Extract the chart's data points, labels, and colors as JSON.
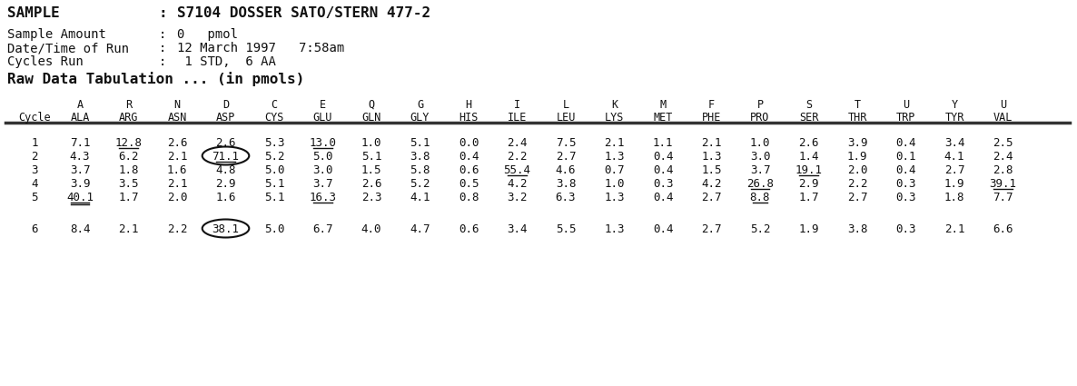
{
  "title_sample": "SAMPLE",
  "title_colon": ":",
  "title_value": "S7104 DOSSER SATO/STERN 477-2",
  "meta": [
    [
      "Sample Amount",
      ":",
      "0   pmol"
    ],
    [
      "Date/Time of Run",
      ":",
      "12 March 1997   7:58am"
    ],
    [
      "Cycles Run",
      ":",
      " 1 STD,  6 AA"
    ]
  ],
  "section_header": "Raw Data Tabulation ... (in pmols)",
  "col_letters": [
    "A",
    "R",
    "N",
    "D",
    "C",
    "E",
    "Q",
    "G",
    "H",
    "I",
    "L",
    "K",
    "M",
    "F",
    "P",
    "S",
    "T",
    "U",
    "Y",
    "U"
  ],
  "col_names": [
    "ALA",
    "ARG",
    "ASN",
    "ASP",
    "CYS",
    "GLU",
    "GLN",
    "GLY",
    "HIS",
    "ILE",
    "LEU",
    "LYS",
    "MET",
    "PHE",
    "PRO",
    "SER",
    "THR",
    "TRP",
    "TYR",
    "VAL"
  ],
  "cycles": [
    "1",
    "2",
    "3",
    "4",
    "5",
    "",
    "6"
  ],
  "data": [
    [
      "7.1",
      "12.8",
      "2.6",
      "2.6",
      "5.3",
      "13.0",
      "1.0",
      "5.1",
      "0.0",
      "2.4",
      "7.5",
      "2.1",
      "1.1",
      "2.1",
      "1.0",
      "2.6",
      "3.9",
      "0.4",
      "3.4",
      "2.5"
    ],
    [
      "4.3",
      "6.2",
      "2.1",
      "71.1",
      "5.2",
      "5.0",
      "5.1",
      "3.8",
      "0.4",
      "2.2",
      "2.7",
      "1.3",
      "0.4",
      "1.3",
      "3.0",
      "1.4",
      "1.9",
      "0.1",
      "4.1",
      "2.4"
    ],
    [
      "3.7",
      "1.8",
      "1.6",
      "4.8",
      "5.0",
      "3.0",
      "1.5",
      "5.8",
      "0.6",
      "55.4",
      "4.6",
      "0.7",
      "0.4",
      "1.5",
      "3.7",
      "19.1",
      "2.0",
      "0.4",
      "2.7",
      "2.8"
    ],
    [
      "3.9",
      "3.5",
      "2.1",
      "2.9",
      "5.1",
      "3.7",
      "2.6",
      "5.2",
      "0.5",
      "4.2",
      "3.8",
      "1.0",
      "0.3",
      "4.2",
      "26.8",
      "2.9",
      "2.2",
      "0.3",
      "1.9",
      "39.1"
    ],
    [
      "40.1",
      "1.7",
      "2.0",
      "1.6",
      "5.1",
      "16.3",
      "2.3",
      "4.1",
      "0.8",
      "3.2",
      "6.3",
      "1.3",
      "0.4",
      "2.7",
      "8.8",
      "1.7",
      "2.7",
      "0.3",
      "1.8",
      "7.7"
    ],
    [
      "",
      "",
      "",
      "",
      "",
      "",
      "",
      "",
      "",
      "",
      "",
      "",
      "",
      "",
      "",
      "",
      "",
      "",
      "",
      ""
    ],
    [
      "8.4",
      "2.1",
      "2.2",
      "38.1",
      "5.0",
      "6.7",
      "4.0",
      "4.7",
      "0.6",
      "3.4",
      "5.5",
      "1.3",
      "0.4",
      "2.7",
      "5.2",
      "1.9",
      "3.8",
      "0.3",
      "2.1",
      "6.6"
    ]
  ],
  "underlined": [
    [
      0,
      1
    ],
    [
      0,
      5
    ],
    [
      1,
      3
    ],
    [
      2,
      9
    ],
    [
      2,
      15
    ],
    [
      3,
      14
    ],
    [
      3,
      19
    ],
    [
      4,
      0
    ],
    [
      4,
      5
    ],
    [
      4,
      14
    ]
  ],
  "double_underlined": [
    [
      4,
      0
    ]
  ],
  "circled": [
    [
      1,
      3
    ],
    [
      6,
      3
    ]
  ],
  "bg_color": "#ffffff",
  "text_color": "#111111",
  "title_fs": 11.5,
  "meta_fs": 10.0,
  "header_fs": 11.5,
  "col_fs": 8.5,
  "data_fs": 9.0
}
